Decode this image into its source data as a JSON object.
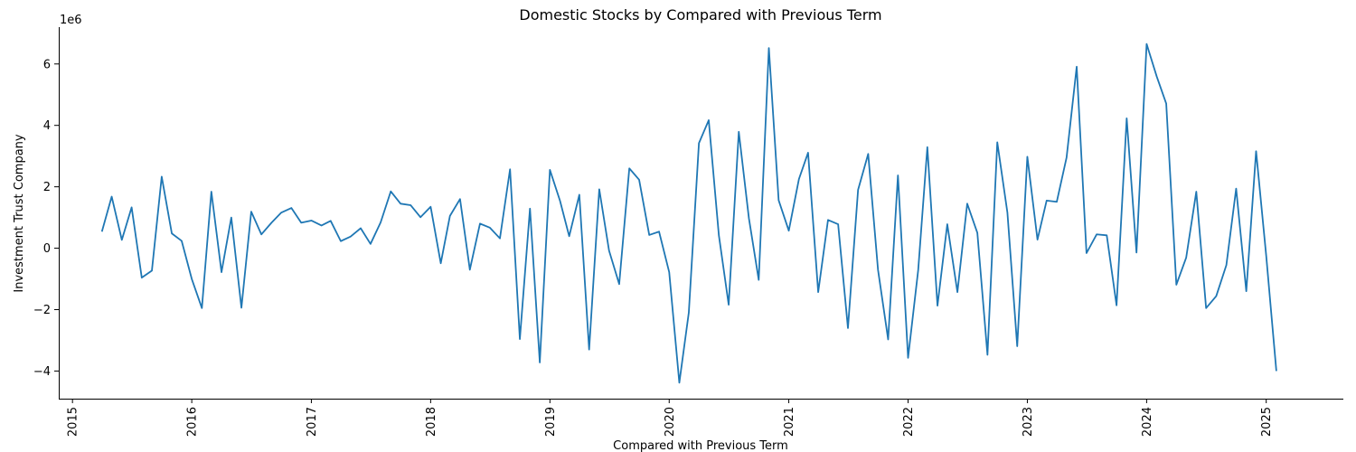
{
  "chart_data": {
    "type": "line",
    "title": "Domestic Stocks by Compared with Previous Term",
    "xlabel": "Compared with Previous Term",
    "ylabel": "Investment Trust Company",
    "y_offset_label": "1e6",
    "xlim": [
      "2014-11-20",
      "2025-08-25"
    ],
    "ylim": [
      -4900000,
      7200000
    ],
    "x_ticks": [
      "2015-01-01",
      "2016-01-01",
      "2017-01-01",
      "2018-01-01",
      "2019-01-01",
      "2020-01-01",
      "2021-01-01",
      "2022-01-01",
      "2023-01-01",
      "2024-01-01",
      "2025-01-01"
    ],
    "x_tick_labels": [
      "2015",
      "2016",
      "2017",
      "2018",
      "2019",
      "2020",
      "2021",
      "2022",
      "2023",
      "2024",
      "2025"
    ],
    "y_ticks": [
      -4000000,
      -2000000,
      0,
      2000000,
      4000000,
      6000000
    ],
    "y_tick_labels": [
      "−4",
      "−2",
      "0",
      "2",
      "4",
      "6"
    ],
    "grid": false,
    "series": [
      {
        "color": "#1f77b4",
        "x": [
          "2015-04-01",
          "2015-05-01",
          "2015-06-01",
          "2015-07-01",
          "2015-08-01",
          "2015-09-01",
          "2015-10-01",
          "2015-11-01",
          "2015-12-01",
          "2016-01-01",
          "2016-02-01",
          "2016-03-01",
          "2016-04-01",
          "2016-05-01",
          "2016-06-01",
          "2016-07-01",
          "2016-08-01",
          "2016-09-01",
          "2016-10-01",
          "2016-11-01",
          "2016-12-01",
          "2017-01-01",
          "2017-02-01",
          "2017-03-01",
          "2017-04-01",
          "2017-05-01",
          "2017-06-01",
          "2017-07-01",
          "2017-08-01",
          "2017-09-01",
          "2017-10-01",
          "2017-11-01",
          "2017-12-01",
          "2018-01-01",
          "2018-02-01",
          "2018-03-01",
          "2018-04-01",
          "2018-05-01",
          "2018-06-01",
          "2018-07-01",
          "2018-08-01",
          "2018-09-01",
          "2018-10-01",
          "2018-11-01",
          "2018-12-01",
          "2019-01-01",
          "2019-02-01",
          "2019-03-01",
          "2019-04-01",
          "2019-05-01",
          "2019-06-01",
          "2019-07-01",
          "2019-08-01",
          "2019-09-01",
          "2019-10-01",
          "2019-11-01",
          "2019-12-01",
          "2020-01-01",
          "2020-02-01",
          "2020-03-01",
          "2020-04-01",
          "2020-05-01",
          "2020-06-01",
          "2020-07-01",
          "2020-08-01",
          "2020-09-01",
          "2020-10-01",
          "2020-11-01",
          "2020-12-01",
          "2021-01-01",
          "2021-02-01",
          "2021-03-01",
          "2021-04-01",
          "2021-05-01",
          "2021-06-01",
          "2021-07-01",
          "2021-08-01",
          "2021-09-01",
          "2021-10-01",
          "2021-11-01",
          "2021-12-01",
          "2022-01-01",
          "2022-02-01",
          "2022-03-01",
          "2022-04-01",
          "2022-05-01",
          "2022-06-01",
          "2022-07-01",
          "2022-08-01",
          "2022-09-01",
          "2022-10-01",
          "2022-11-01",
          "2022-12-01",
          "2023-01-01",
          "2023-02-01",
          "2023-03-01",
          "2023-04-01",
          "2023-05-01",
          "2023-06-01",
          "2023-07-01",
          "2023-08-01",
          "2023-09-01",
          "2023-10-01",
          "2023-11-01",
          "2023-12-01",
          "2024-01-01",
          "2024-02-01",
          "2024-03-01",
          "2024-04-01",
          "2024-05-01",
          "2024-06-01",
          "2024-07-01",
          "2024-08-01",
          "2024-09-01",
          "2024-10-01",
          "2024-11-01",
          "2024-12-01",
          "2025-01-01",
          "2025-02-01"
        ],
        "y": [
          540000,
          1680000,
          270000,
          1330000,
          -960000,
          -730000,
          2330000,
          480000,
          240000,
          -1000000,
          -1950000,
          1840000,
          -780000,
          1000000,
          -1940000,
          1190000,
          450000,
          830000,
          1160000,
          1310000,
          830000,
          900000,
          740000,
          890000,
          230000,
          380000,
          650000,
          140000,
          840000,
          1850000,
          1450000,
          1400000,
          1010000,
          1350000,
          -490000,
          1050000,
          1600000,
          -700000,
          800000,
          670000,
          320000,
          2570000,
          -2960000,
          1290000,
          -3720000,
          2550000,
          1540000,
          390000,
          1740000,
          -3300000,
          1920000,
          -80000,
          -1170000,
          2600000,
          2230000,
          430000,
          540000,
          -780000,
          -4380000,
          -2100000,
          3420000,
          4170000,
          420000,
          -1840000,
          3790000,
          970000,
          -1030000,
          6520000,
          1560000,
          570000,
          2250000,
          3110000,
          -1430000,
          920000,
          780000,
          -2600000,
          1900000,
          3070000,
          -700000,
          -2970000,
          2370000,
          -3570000,
          -710000,
          3290000,
          -1870000,
          780000,
          -1430000,
          1450000,
          500000,
          -3470000,
          3450000,
          1160000,
          -3190000,
          2980000,
          280000,
          1550000,
          1510000,
          2950000,
          5910000,
          -160000,
          450000,
          420000,
          -1860000,
          4230000,
          -140000,
          6650000,
          5590000,
          4710000,
          -1190000,
          -310000,
          1840000,
          -1950000,
          -1560000,
          -550000,
          1940000,
          -1400000,
          3160000,
          -250000,
          -4000000
        ]
      }
    ]
  }
}
